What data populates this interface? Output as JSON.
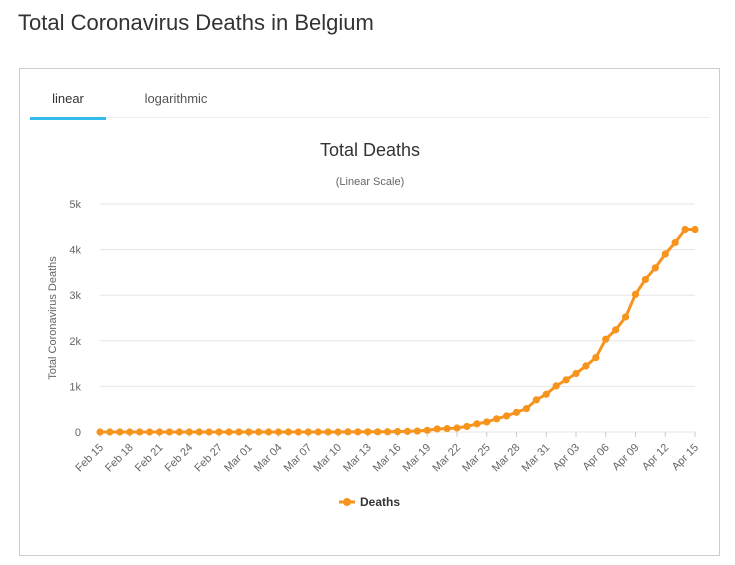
{
  "page": {
    "title": "Total Coronavirus Deaths in Belgium"
  },
  "tabs": [
    {
      "label": "linear",
      "active": true
    },
    {
      "label": "logarithmic",
      "active": false
    }
  ],
  "colors": {
    "series": "#f7941d",
    "tab_accent": "#33bbee",
    "grid": "#e6e6e6",
    "axis_text": "#666666"
  },
  "chart_data": {
    "type": "line",
    "title": "Total Deaths",
    "subtitle": "(Linear Scale)",
    "ylabel": "Total Coronavirus Deaths",
    "xlabel": "",
    "ylim": [
      0,
      5000
    ],
    "yticks": [
      0,
      1000,
      2000,
      3000,
      4000,
      5000
    ],
    "ytick_labels": [
      "0",
      "1k",
      "2k",
      "3k",
      "4k",
      "5k"
    ],
    "xtick_labels": [
      "Feb 15",
      "Feb 18",
      "Feb 21",
      "Feb 24",
      "Feb 27",
      "Mar 01",
      "Mar 04",
      "Mar 07",
      "Mar 10",
      "Mar 13",
      "Mar 16",
      "Mar 19",
      "Mar 22",
      "Mar 25",
      "Mar 28",
      "Mar 31",
      "Apr 03",
      "Apr 06",
      "Apr 09",
      "Apr 12",
      "Apr 15"
    ],
    "legend_position": "bottom-center",
    "grid": true,
    "x": [
      "Feb 15",
      "Feb 16",
      "Feb 17",
      "Feb 18",
      "Feb 19",
      "Feb 20",
      "Feb 21",
      "Feb 22",
      "Feb 23",
      "Feb 24",
      "Feb 25",
      "Feb 26",
      "Feb 27",
      "Feb 28",
      "Feb 29",
      "Mar 01",
      "Mar 02",
      "Mar 03",
      "Mar 04",
      "Mar 05",
      "Mar 06",
      "Mar 07",
      "Mar 08",
      "Mar 09",
      "Mar 10",
      "Mar 11",
      "Mar 12",
      "Mar 13",
      "Mar 14",
      "Mar 15",
      "Mar 16",
      "Mar 17",
      "Mar 18",
      "Mar 19",
      "Mar 20",
      "Mar 21",
      "Mar 22",
      "Mar 23",
      "Mar 24",
      "Mar 25",
      "Mar 26",
      "Mar 27",
      "Mar 28",
      "Mar 29",
      "Mar 30",
      "Mar 31",
      "Apr 01",
      "Apr 02",
      "Apr 03",
      "Apr 04",
      "Apr 05",
      "Apr 06",
      "Apr 07",
      "Apr 08",
      "Apr 09",
      "Apr 10",
      "Apr 11",
      "Apr 12",
      "Apr 13",
      "Apr 14",
      "Apr 15"
    ],
    "series": [
      {
        "name": "Deaths",
        "values": [
          0,
          0,
          0,
          0,
          0,
          0,
          0,
          0,
          0,
          0,
          0,
          0,
          0,
          0,
          0,
          0,
          0,
          0,
          0,
          0,
          0,
          0,
          0,
          0,
          0,
          3,
          3,
          4,
          4,
          5,
          10,
          14,
          21,
          37,
          67,
          75,
          88,
          122,
          178,
          220,
          289,
          353,
          431,
          513,
          705,
          828,
          1011,
          1143,
          1283,
          1447,
          1632,
          2035,
          2240,
          2523,
          3019,
          3346,
          3600,
          3903,
          4157,
          4440,
          4440
        ]
      }
    ]
  }
}
